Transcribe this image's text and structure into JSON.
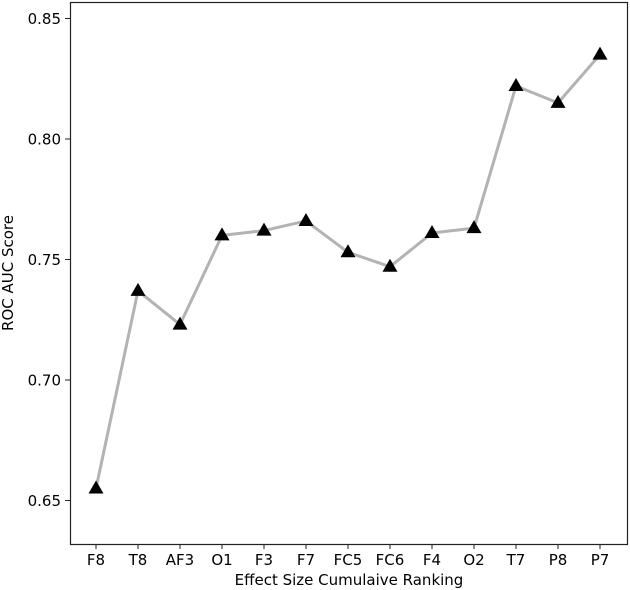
{
  "chart_data": {
    "type": "line",
    "title": "",
    "xlabel": "Effect Size Cumulaive Ranking",
    "ylabel": "ROC AUC Score",
    "categories": [
      "F8",
      "T8",
      "AF3",
      "O1",
      "F3",
      "F7",
      "FC5",
      "FC6",
      "F4",
      "O2",
      "T7",
      "P8",
      "P7"
    ],
    "series": [
      {
        "name": "ROC AUC",
        "values": [
          0.655,
          0.737,
          0.723,
          0.76,
          0.762,
          0.766,
          0.753,
          0.747,
          0.761,
          0.763,
          0.822,
          0.815,
          0.835
        ],
        "line_color": "#b3b3b3",
        "marker": "triangle",
        "marker_color": "#000000"
      }
    ],
    "ylim": [
      0.628,
      0.857
    ],
    "yticks": [
      0.65,
      0.7,
      0.75,
      0.8,
      0.85
    ],
    "ytick_labels": [
      "0.65",
      "0.70",
      "0.75",
      "0.80",
      "0.85"
    ],
    "grid": false,
    "legend": null
  }
}
